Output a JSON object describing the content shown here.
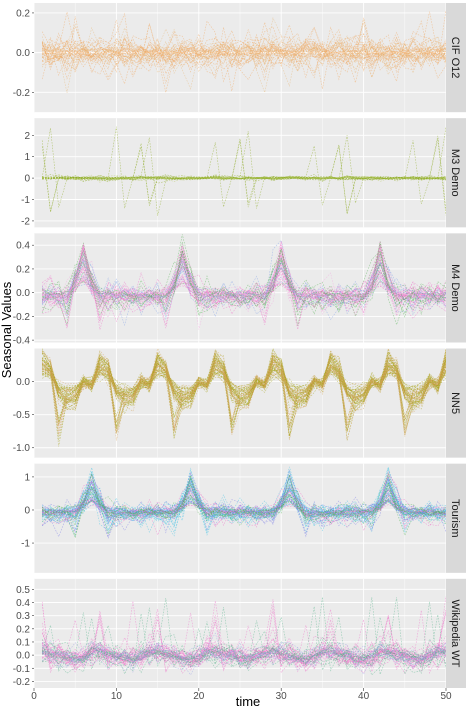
{
  "chart_data": {
    "type": "line",
    "xlabel": "time",
    "ylabel": "Seasonal Values",
    "xlim": [
      0,
      50
    ],
    "xticks": [
      0,
      10,
      20,
      30,
      40,
      50
    ],
    "grid": true,
    "legend": "none",
    "colors": {
      "panel_bg": "#ebebeb",
      "grid": "#ffffff",
      "strip_bg": "#d9d9d9",
      "tick_text": "#4d4d4d"
    },
    "facets": [
      {
        "label": "CIF O12",
        "ylim": [
          -0.3,
          0.25
        ],
        "yticks": [
          -0.2,
          0.0,
          0.2
        ],
        "ytick_labels": [
          "-0.2",
          "0.0",
          "0.2"
        ],
        "period": 12,
        "typical_amplitude": 0.05,
        "spike_amplitude": 0.22,
        "series_groups": [
          {
            "color": "#f0a860",
            "count": 28
          },
          {
            "color": "#e8b878",
            "count": 10
          }
        ],
        "style": "noise"
      },
      {
        "label": "M3 Demo",
        "ylim": [
          -2.3,
          2.8
        ],
        "yticks": [
          -2,
          -1,
          0,
          1,
          2
        ],
        "ytick_labels": [
          "-2",
          "-1",
          "0",
          "1",
          "2"
        ],
        "period": 12,
        "typical_amplitude": 0.08,
        "spike_amplitude": 2.4,
        "series_groups": [
          {
            "color": "#8aaa1e",
            "count": 18
          },
          {
            "color": "#b4c85a",
            "count": 3
          }
        ],
        "style": "flat-spikes"
      },
      {
        "label": "M4 Demo",
        "ylim": [
          -0.42,
          0.5
        ],
        "yticks": [
          -0.4,
          -0.2,
          0.0,
          0.2,
          0.4
        ],
        "ytick_labels": [
          "-0.4",
          "-0.2",
          "0.0",
          "0.2",
          "0.4"
        ],
        "period": 12,
        "peak_step": 6,
        "typical_amplitude": 0.12,
        "spike_amplitude": 0.45,
        "series_groups": [
          {
            "color": "#ee6fc9",
            "count": 26
          },
          {
            "color": "#7fa0e8",
            "count": 10
          },
          {
            "color": "#56b456",
            "count": 10
          },
          {
            "color": "#f2a7e0",
            "count": 8
          }
        ],
        "style": "peaked"
      },
      {
        "label": "NN5",
        "ylim": [
          -1.15,
          0.5
        ],
        "yticks": [
          -1.0,
          -0.5,
          0.0
        ],
        "ytick_labels": [
          "-1.0",
          "-0.5",
          "0.0"
        ],
        "period": 7,
        "pattern": [
          -0.05,
          0.28,
          0.18,
          -0.15,
          -0.25,
          -0.22,
          0.0
        ],
        "typical_amplitude": 0.35,
        "series_groups": [
          {
            "color": "#a7a41a",
            "count": 40
          },
          {
            "color": "#d4a25a",
            "count": 18
          }
        ],
        "style": "weekly"
      },
      {
        "label": "Tourism",
        "ylim": [
          -1.9,
          1.4
        ],
        "yticks": [
          -1,
          0,
          1
        ],
        "ytick_labels": [
          "-1",
          "0",
          "1"
        ],
        "period": 12,
        "peak_step": 7,
        "typical_amplitude": 0.35,
        "spike_amplitude": 1.3,
        "series_groups": [
          {
            "color": "#3fc3e6",
            "count": 30
          },
          {
            "color": "#7b7ce8",
            "count": 14
          },
          {
            "color": "#ee6fc9",
            "count": 10
          },
          {
            "color": "#56b456",
            "count": 10
          }
        ],
        "style": "peaked"
      },
      {
        "label": "Wikipedia WT",
        "ylim": [
          -0.25,
          0.58
        ],
        "yticks": [
          -0.2,
          -0.1,
          0.0,
          0.1,
          0.2,
          0.3,
          0.4,
          0.5
        ],
        "ytick_labels": [
          "-0.2",
          "-0.1",
          "0.0",
          "0.1",
          "0.2",
          "0.3",
          "0.4",
          "0.5"
        ],
        "period": 7,
        "pattern": [
          0.02,
          0.03,
          0.01,
          0.0,
          -0.02,
          -0.03,
          -0.01
        ],
        "typical_amplitude": 0.06,
        "spike_amplitude": 0.45,
        "series_groups": [
          {
            "color": "#ee6fc9",
            "count": 34
          },
          {
            "color": "#56b48a",
            "count": 16
          },
          {
            "color": "#9aa0e8",
            "count": 8
          }
        ],
        "style": "weekly-spiky"
      }
    ]
  }
}
